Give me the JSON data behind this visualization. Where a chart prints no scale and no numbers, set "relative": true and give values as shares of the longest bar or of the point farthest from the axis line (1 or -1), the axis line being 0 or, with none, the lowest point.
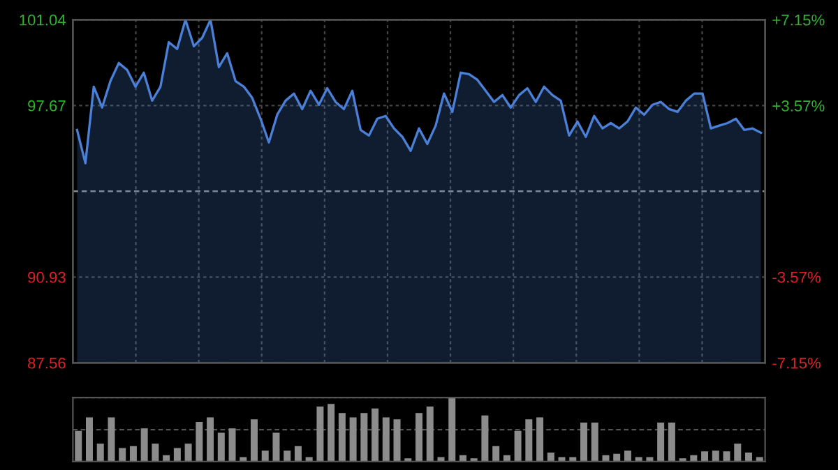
{
  "chart_data": [
    {
      "type": "area",
      "categories": [
        null,
        null,
        null,
        null,
        null,
        null,
        null,
        null,
        null,
        null,
        null,
        null,
        null,
        null,
        null,
        null,
        null,
        null,
        null,
        null,
        null,
        null,
        null,
        null,
        null,
        null,
        null,
        null,
        null,
        null,
        null,
        null,
        null,
        null,
        null,
        null,
        null,
        null,
        null,
        null,
        null,
        null,
        null,
        null,
        null,
        null,
        null,
        null,
        null,
        null,
        null,
        null,
        null,
        null,
        null,
        null,
        null,
        null,
        null,
        null,
        null,
        null,
        null,
        null,
        null,
        null,
        null,
        null,
        null,
        null,
        null,
        null,
        null,
        null,
        null,
        null,
        null,
        null,
        null,
        null,
        null,
        null,
        null
      ],
      "series": [
        {
          "color": "#4a80d8",
          "values": [
            96.71,
            95.4,
            98.41,
            97.59,
            98.63,
            99.34,
            99.07,
            98.41,
            98.96,
            97.86,
            98.41,
            100.16,
            99.89,
            101.04,
            100.0,
            100.33,
            101.04,
            99.18,
            99.72,
            98.63,
            98.41,
            97.97,
            97.15,
            96.22,
            97.31,
            97.86,
            98.14,
            97.53,
            98.25,
            97.7,
            98.35,
            97.81,
            97.53,
            98.25,
            96.71,
            96.49,
            97.15,
            97.26,
            96.77,
            96.44,
            95.89,
            96.77,
            96.16,
            96.88,
            98.14,
            97.42,
            98.96,
            98.9,
            98.68,
            98.25,
            97.81,
            98.08,
            97.59,
            98.08,
            98.35,
            97.81,
            98.41,
            98.08,
            97.86,
            96.49,
            97.04,
            96.44,
            97.26,
            96.77,
            96.98,
            96.77,
            97.04,
            97.59,
            97.31,
            97.7,
            97.81,
            97.53,
            97.42,
            97.86,
            98.14,
            98.14,
            96.77,
            96.88,
            96.98,
            97.15,
            96.71,
            96.77,
            96.6
          ]
        }
      ],
      "ylim": [
        87.56,
        101.04
      ],
      "yticks": [
        87.56,
        90.93,
        97.67,
        101.04
      ],
      "y2lim": [
        -7.15,
        7.15
      ],
      "y2ticks": [
        {
          "value": -7.15,
          "label": "-7.15%"
        },
        {
          "value": -3.57,
          "label": "-3.57%"
        },
        {
          "value": 3.57,
          "label": "+3.57%"
        },
        {
          "value": 7.15,
          "label": "+7.15%"
        }
      ],
      "ref_lines": [
        {
          "axis": "y",
          "value": 94.3,
          "color": "#8a8a8a",
          "line_style": "dashed"
        }
      ],
      "grid": true
    },
    {
      "type": "bar",
      "relative": true,
      "categories": [
        null,
        null,
        null,
        null,
        null,
        null,
        null,
        null,
        null,
        null,
        null,
        null,
        null,
        null,
        null,
        null,
        null,
        null,
        null,
        null,
        null,
        null,
        null,
        null,
        null,
        null,
        null,
        null,
        null,
        null,
        null,
        null,
        null,
        null,
        null,
        null,
        null,
        null,
        null,
        null,
        null,
        null,
        null,
        null,
        null,
        null,
        null,
        null,
        null,
        null,
        null,
        null,
        null,
        null,
        null,
        null,
        null,
        null,
        null,
        null,
        null,
        null,
        null
      ],
      "values": [
        0.48,
        0.69,
        0.28,
        0.69,
        0.21,
        0.24,
        0.52,
        0.28,
        0.1,
        0.21,
        0.28,
        0.62,
        0.69,
        0.45,
        0.52,
        0.07,
        0.66,
        0.17,
        0.45,
        0.17,
        0.24,
        0.07,
        0.86,
        0.9,
        0.76,
        0.69,
        0.76,
        0.83,
        0.69,
        0.66,
        0.05,
        0.76,
        0.86,
        0.07,
        1,
        0.1,
        0.05,
        0.72,
        0.24,
        0.1,
        0.48,
        0.66,
        0.69,
        0.14,
        0.07,
        0.07,
        0.61,
        0.61,
        0.1,
        0.12,
        0.17,
        0.07,
        0.07,
        0.61,
        0.61,
        0.05,
        0.1,
        0.16,
        0.17,
        0.16,
        0.28,
        0.14,
        0.07
      ],
      "color": "#8c8c8c",
      "ref_lines": [
        {
          "axis": "y",
          "value": 0.5,
          "color": "#555555",
          "line_style": "dashed"
        }
      ],
      "grid": true
    }
  ]
}
